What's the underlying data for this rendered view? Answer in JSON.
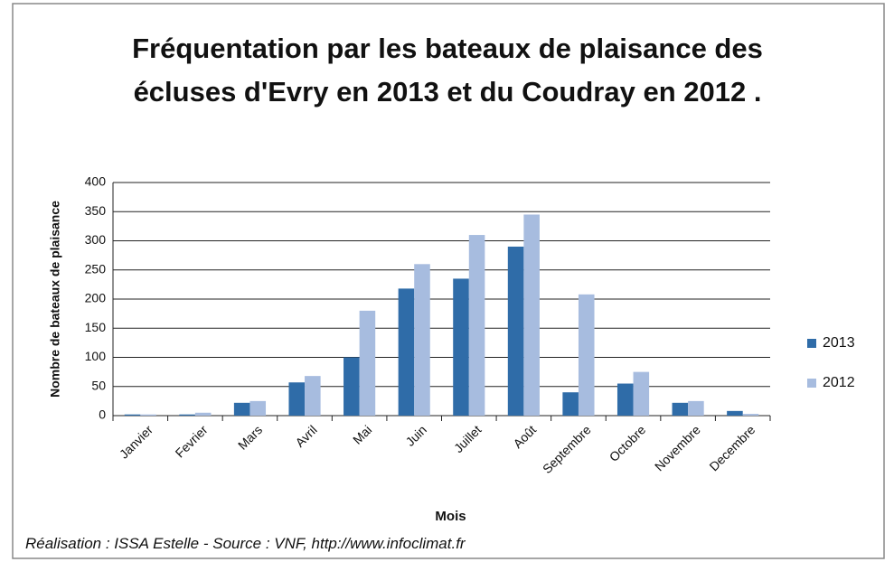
{
  "chart_data": {
    "type": "bar",
    "title": "Fréquentation par les bateaux de plaisance des écluses d'Evry en 2013 et du Coudray en 2012 .",
    "x_label": "Mois",
    "y_label": "Nombre de bateaux de plaisance",
    "source": "Réalisation : ISSA Estelle - Source : VNF, http://www.infoclimat.fr",
    "categories": [
      "Janvier",
      "Fevrier",
      "Mars",
      "Avril",
      "Mai",
      "Juin",
      "Juillet",
      "Août",
      "Septembre",
      "Octobre",
      "Novembre",
      "Decembre"
    ],
    "series": [
      {
        "name": "2013",
        "color": "#2f6ca8",
        "values": [
          2,
          2,
          22,
          57,
          100,
          218,
          235,
          290,
          40,
          55,
          22,
          8
        ]
      },
      {
        "name": "2012",
        "color": "#a7bcdf",
        "values": [
          2,
          5,
          25,
          68,
          180,
          260,
          310,
          345,
          208,
          75,
          25,
          3
        ]
      }
    ],
    "ylim": [
      0,
      400
    ],
    "yticks": [
      0,
      50,
      100,
      150,
      200,
      250,
      300,
      350,
      400
    ],
    "grid": true,
    "legend": "right"
  }
}
